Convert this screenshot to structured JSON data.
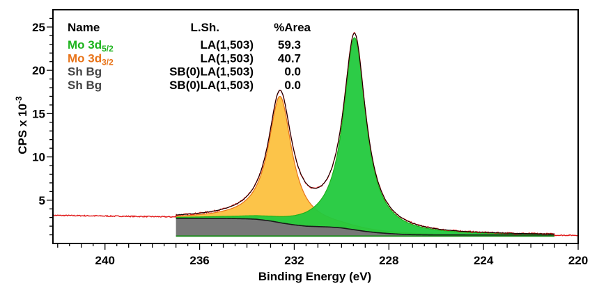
{
  "chart_data": {
    "type": "line",
    "title": "",
    "xlabel": "Binding Energy (eV)",
    "ylabel": "CPS x 10",
    "ylabel_exponent": "-3",
    "xlim": [
      242.2,
      220.0
    ],
    "ylim": [
      0.0,
      27.0
    ],
    "x_reversed": true,
    "grid": false,
    "x_ticks": [
      240,
      236,
      232,
      228,
      224,
      220
    ],
    "y_ticks": [
      5,
      10,
      15,
      20,
      25
    ],
    "legend_location": "top-left",
    "legend_header": {
      "name": "Name",
      "lsh": "L.Sh.",
      "area": "%Area"
    },
    "legend_rows": [
      {
        "name_base": "Mo 3d",
        "name_sub": "5/2",
        "lsh": "LA(1,503)",
        "area": "59.3",
        "color": "#1db31d"
      },
      {
        "name_base": "Mo 3d",
        "name_sub": "3/2",
        "lsh": "LA(1,503)",
        "area": "40.7",
        "color": "#e8741a"
      },
      {
        "name_base": "Sh Bg",
        "name_sub": "",
        "lsh": "SB(0)LA(1,503)",
        "area": "0.0",
        "color": "#444444"
      },
      {
        "name_base": "Sh Bg",
        "name_sub": "",
        "lsh": "SB(0)LA(1,503)",
        "area": "0.0",
        "color": "#444444"
      }
    ],
    "fit_range": [
      237.0,
      221.0
    ],
    "background": {
      "x": [
        237.0,
        235.0,
        234.0,
        233.6,
        233.0,
        232.5,
        232.0,
        231.5,
        231.0,
        230.5,
        230.0,
        229.5,
        229.0,
        228.5,
        228.0,
        227.5,
        227.0,
        226.0,
        221.0
      ],
      "y": [
        2.9,
        2.9,
        2.85,
        2.8,
        2.6,
        2.35,
        2.15,
        2.0,
        1.95,
        1.9,
        1.8,
        1.6,
        1.4,
        1.25,
        1.15,
        1.07,
        1.02,
        0.98,
        0.96
      ]
    },
    "series": [
      {
        "name": "Mo 3d5/2",
        "center": 229.45,
        "height": 22.2,
        "fwhm": 1.15,
        "color": "#1db31d",
        "fill": "#22c93d"
      },
      {
        "name": "Mo 3d3/2",
        "center": 232.6,
        "height": 14.6,
        "fwhm": 1.2,
        "color": "#e8741a",
        "fill": "#fcc13f"
      }
    ],
    "raw_data_color": "#e01818",
    "raw_data_note_range": [
      242.2,
      220.0
    ],
    "colors": {
      "shirley_fill": "#777777",
      "overlap_fill": "#2aa6d6",
      "envelope": "#000000"
    }
  }
}
